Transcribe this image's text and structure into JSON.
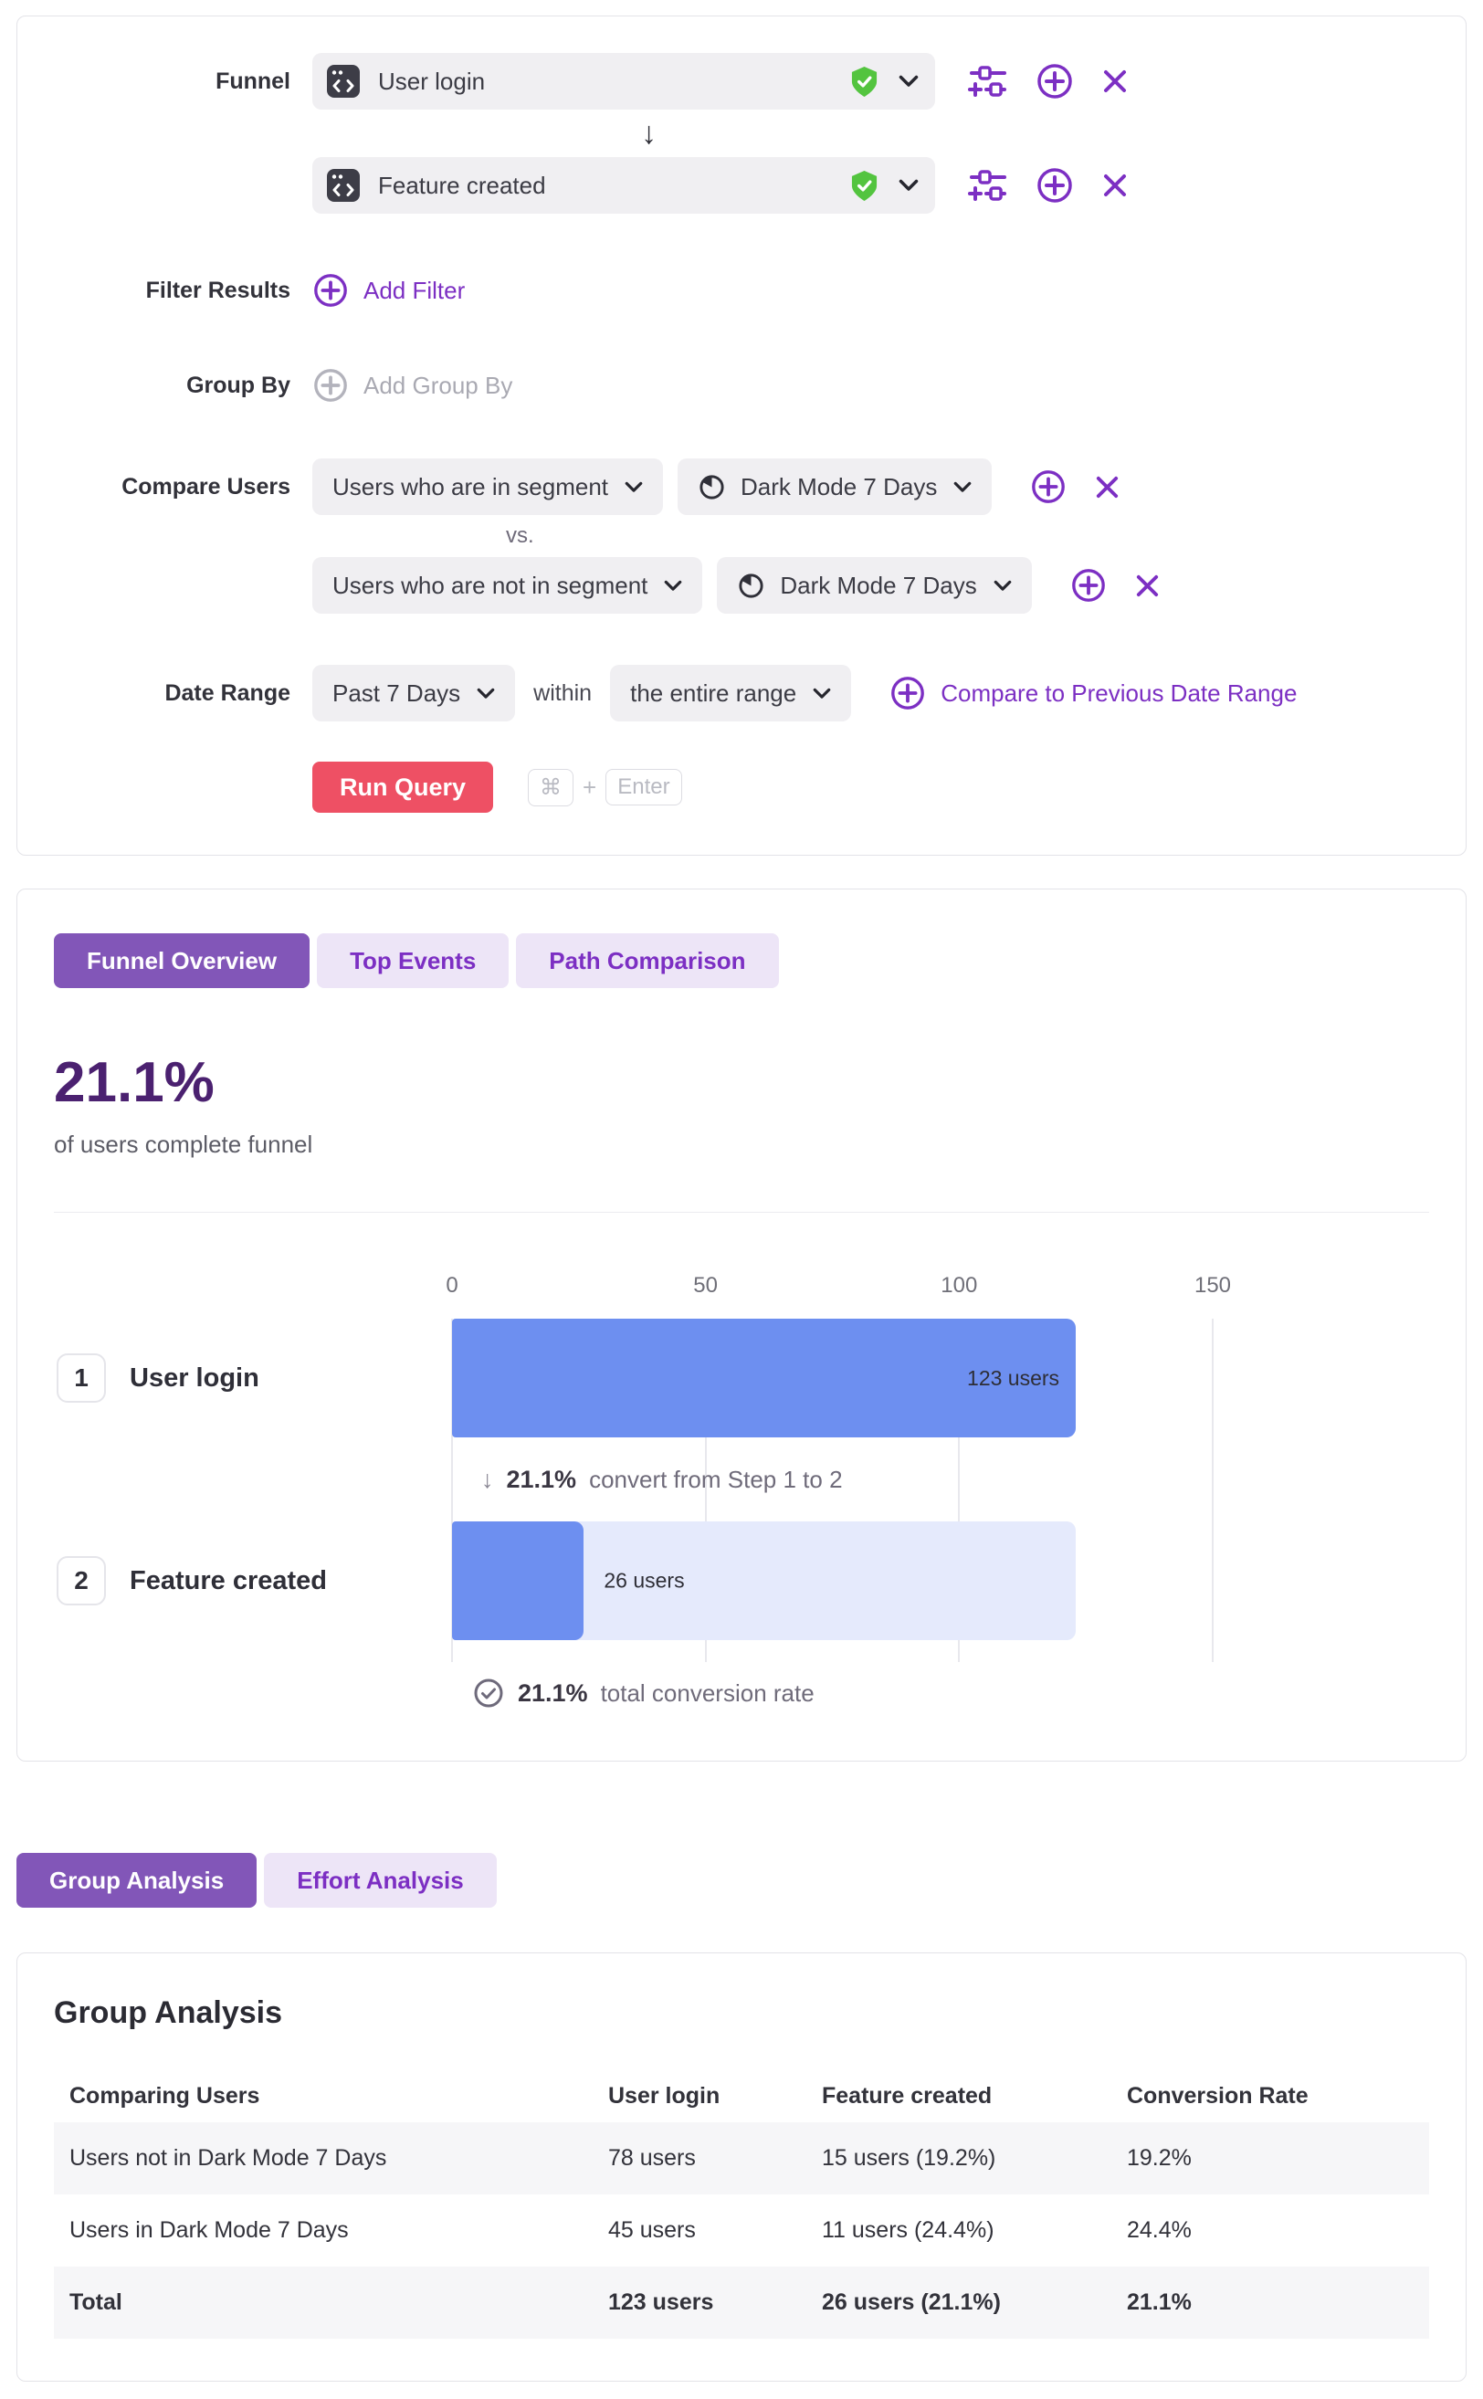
{
  "colors": {
    "accent_purple": "#7c2fc3",
    "tab_active_purple": "#8256b8",
    "tab_inactive_bg": "#ede5f7",
    "headline_purple": "#4b2170",
    "run_query_red": "#ee5064",
    "verified_green": "#53c43f",
    "bar_blue": "#6d8ff0",
    "bar_blue_light": "#e5eafc",
    "input_gray": "#f0eff2"
  },
  "query_builder": {
    "funnel_label": "Funnel",
    "steps": [
      {
        "label": "User login"
      },
      {
        "label": "Feature created"
      }
    ],
    "filter": {
      "label": "Filter Results",
      "add_label": "Add Filter"
    },
    "group_by": {
      "label": "Group By",
      "add_label": "Add Group By"
    },
    "compare_users": {
      "label": "Compare Users",
      "vs_label": "vs.",
      "rows": [
        {
          "selector": "Users who are in segment",
          "segment": "Dark Mode 7 Days"
        },
        {
          "selector": "Users who are not in segment",
          "segment": "Dark Mode 7 Days"
        }
      ]
    },
    "date_range": {
      "label": "Date Range",
      "range": "Past 7 Days",
      "within_label": "within",
      "window": "the entire range",
      "compare_link": "Compare to Previous Date Range"
    },
    "run_query_label": "Run Query",
    "shortcut": {
      "meta": "⌘",
      "plus": "+",
      "key": "Enter"
    }
  },
  "results": {
    "tabs": [
      {
        "label": "Funnel Overview",
        "active": true
      },
      {
        "label": "Top Events",
        "active": false
      },
      {
        "label": "Path Comparison",
        "active": false
      }
    ],
    "headline": {
      "value": "21.1%",
      "subtitle": "of users complete funnel"
    },
    "chart_data": {
      "type": "bar",
      "orientation": "horizontal",
      "axis_ticks": [
        0,
        50,
        100,
        150
      ],
      "axis_max": 150,
      "steps": [
        {
          "index": "1",
          "label": "User login",
          "users": 123,
          "users_label": "123 users"
        },
        {
          "index": "2",
          "label": "Feature created",
          "users": 26,
          "users_label": "26 users"
        }
      ],
      "conversion_note": {
        "value": "21.1%",
        "text": "convert from Step 1 to 2"
      },
      "total_note": {
        "value": "21.1%",
        "text": "total conversion rate"
      }
    }
  },
  "analysis_tabs": [
    {
      "label": "Group Analysis",
      "active": true
    },
    {
      "label": "Effort Analysis",
      "active": false
    }
  ],
  "group_analysis": {
    "title": "Group Analysis",
    "columns": [
      "Comparing Users",
      "User login",
      "Feature created",
      "Conversion Rate"
    ],
    "rows": [
      [
        "Users not in Dark Mode 7 Days",
        "78 users",
        "15 users (19.2%)",
        "19.2%"
      ],
      [
        "Users in Dark Mode 7 Days",
        "45 users",
        "11 users (24.4%)",
        "24.4%"
      ],
      [
        "Total",
        "123 users",
        "26 users (21.1%)",
        "21.1%"
      ]
    ]
  }
}
